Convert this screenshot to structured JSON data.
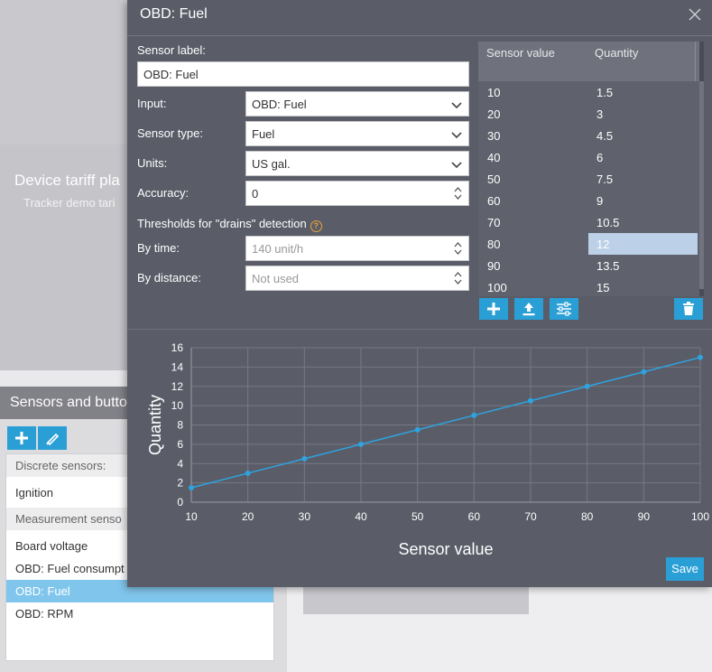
{
  "background": {
    "section_title": "Device tariff pla",
    "section_subtitle": "Tracker demo tari",
    "sensors_header": "Sensors and butto",
    "list": {
      "discrete_group": "Discrete sensors:",
      "ignition": "Ignition",
      "measurement_group": "Measurement senso",
      "board_voltage": "Board voltage",
      "fuel_consumption": "OBD: Fuel consumpt",
      "fuel": "OBD: Fuel",
      "rpm": "OBD: RPM"
    }
  },
  "dialog": {
    "title": "OBD: Fuel",
    "form": {
      "sensor_label_label": "Sensor label:",
      "sensor_label_value": "OBD: Fuel",
      "input_label": "Input:",
      "input_value": "OBD: Fuel",
      "sensor_type_label": "Sensor type:",
      "sensor_type_value": "Fuel",
      "units_label": "Units:",
      "units_value": "US gal.",
      "accuracy_label": "Accuracy:",
      "accuracy_value": "0",
      "thresholds_label": "Thresholds for \"drains\" detection",
      "help_glyph": "?",
      "by_time_label": "By time:",
      "by_time_value": "140 unit/h",
      "by_distance_label": "By distance:",
      "by_distance_value": "Not used"
    },
    "table": {
      "col_sensor_value": "Sensor value",
      "col_quantity": "Quantity",
      "rows": [
        {
          "sensor": "10",
          "quantity": "1.5"
        },
        {
          "sensor": "20",
          "quantity": "3"
        },
        {
          "sensor": "30",
          "quantity": "4.5"
        },
        {
          "sensor": "40",
          "quantity": "6"
        },
        {
          "sensor": "50",
          "quantity": "7.5"
        },
        {
          "sensor": "60",
          "quantity": "9"
        },
        {
          "sensor": "70",
          "quantity": "10.5"
        },
        {
          "sensor": "80",
          "quantity": "12"
        },
        {
          "sensor": "90",
          "quantity": "13.5"
        },
        {
          "sensor": "100",
          "quantity": "15"
        }
      ],
      "selected_row": 7
    },
    "save_label": "Save"
  },
  "colors": {
    "accent": "#2a9fd6",
    "dialog_bg": "#5a5d68",
    "series": "#2ea3e0",
    "selected_cell": "#bcd0e8",
    "help": "#e8a23a"
  },
  "chart_data": {
    "type": "line",
    "x": [
      10,
      20,
      30,
      40,
      50,
      60,
      70,
      80,
      90,
      100
    ],
    "series": [
      {
        "values": [
          1.5,
          3,
          4.5,
          6,
          7.5,
          9,
          10.5,
          12,
          13.5,
          15
        ]
      }
    ],
    "xlabel": "Sensor value",
    "ylabel": "Quantity",
    "xlim": [
      10,
      100
    ],
    "ylim": [
      0,
      16
    ],
    "xticks": [
      "10",
      "20",
      "30",
      "40",
      "50",
      "60",
      "70",
      "80",
      "90",
      "100"
    ],
    "yticks": [
      "0",
      "2",
      "4",
      "6",
      "8",
      "10",
      "12",
      "14",
      "16"
    ],
    "grid": true
  }
}
